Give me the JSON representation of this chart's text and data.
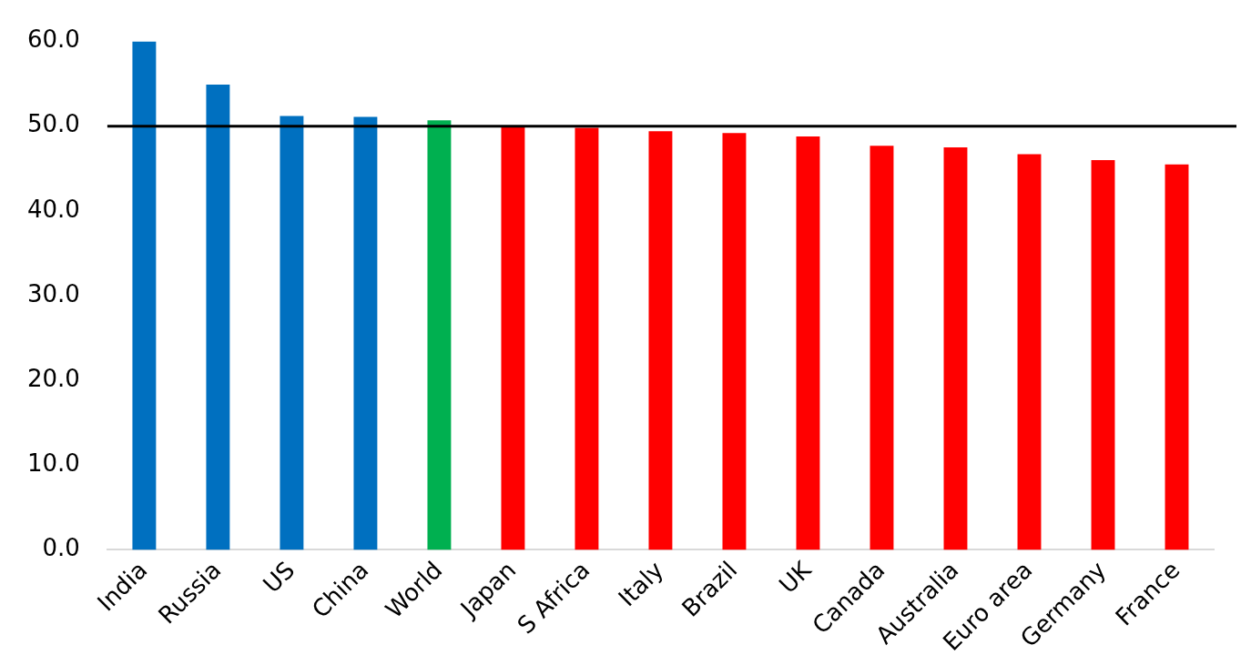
{
  "chart_data": {
    "type": "bar",
    "categories": [
      "India",
      "Russia",
      "US",
      "China",
      "World",
      "Japan",
      "S Africa",
      "Italy",
      "Brazil",
      "UK",
      "Canada",
      "Australia",
      "Euro area",
      "Germany",
      "France"
    ],
    "values": [
      60.0,
      54.9,
      51.2,
      51.1,
      50.7,
      49.9,
      49.8,
      49.4,
      49.2,
      48.8,
      47.7,
      47.5,
      46.7,
      46.0,
      45.5
    ],
    "colors": [
      "#0070c0",
      "#0070c0",
      "#0070c0",
      "#0070c0",
      "#00b050",
      "#ff0000",
      "#ff0000",
      "#ff0000",
      "#ff0000",
      "#ff0000",
      "#ff0000",
      "#ff0000",
      "#ff0000",
      "#ff0000",
      "#ff0000"
    ],
    "ylim": [
      0,
      60
    ],
    "yticks": [
      {
        "value": 0,
        "label": "0.0"
      },
      {
        "value": 10,
        "label": "10.0"
      },
      {
        "value": 20,
        "label": "20.0"
      },
      {
        "value": 30,
        "label": "30.0"
      },
      {
        "value": 40,
        "label": "40.0"
      },
      {
        "value": 50,
        "label": "50.0"
      },
      {
        "value": 60,
        "label": "60.0"
      }
    ],
    "ref_lines": [
      {
        "axis": "y",
        "value": 50,
        "color": "#000000"
      }
    ],
    "grid": false,
    "legend": false
  }
}
